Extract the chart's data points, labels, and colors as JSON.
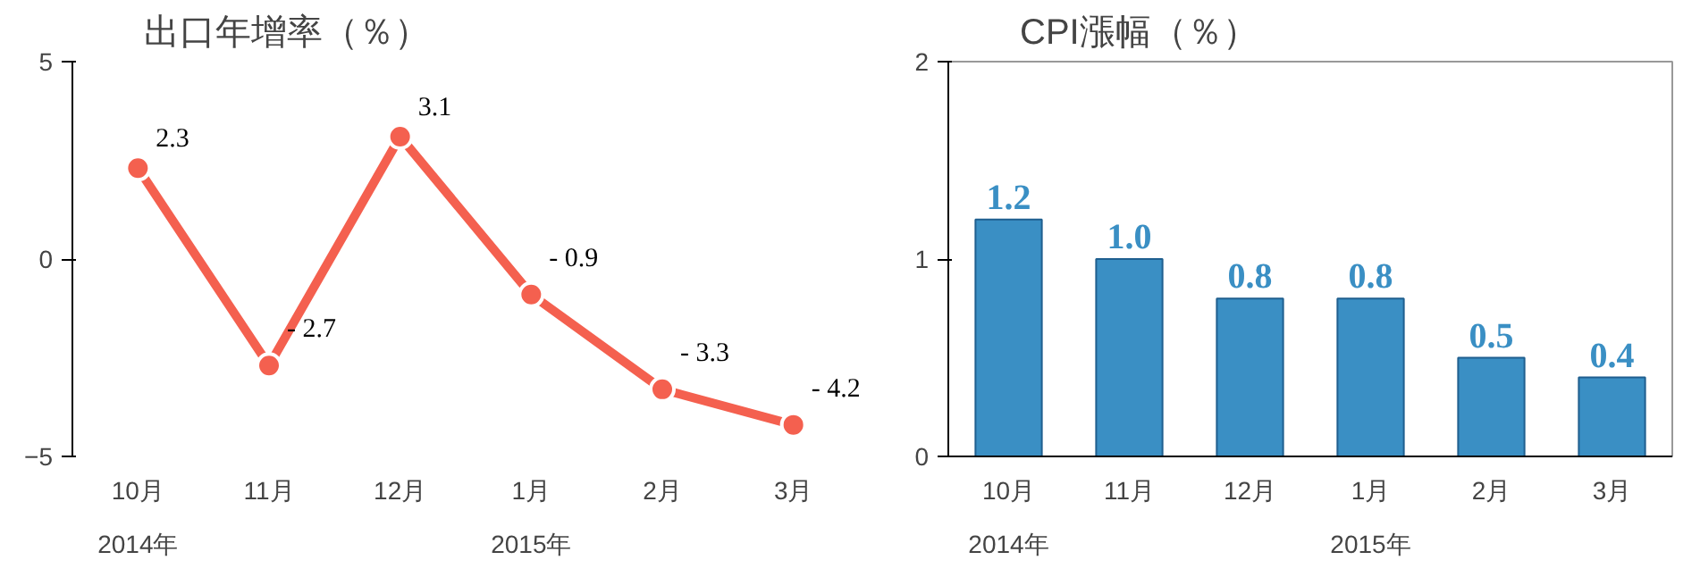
{
  "chart_data": [
    {
      "type": "line",
      "title": "出口年增率（％）",
      "categories": [
        "10月",
        "11月",
        "12月",
        "1月",
        "2月",
        "3月"
      ],
      "series": [
        {
          "color": "#f4604f",
          "values": [
            2.3,
            -2.7,
            3.1,
            -0.9,
            -3.3,
            -4.2
          ],
          "value_labels": [
            "2.3",
            "- 2.7",
            "3.1",
            "- 0.9",
            "- 3.3",
            "- 4.2"
          ]
        }
      ],
      "ylim": [
        -5,
        5
      ],
      "yticks": [
        -5,
        0,
        5
      ],
      "marker": "circle",
      "line_style": "solid",
      "grid": false,
      "annotations": [
        "2014年",
        "2015年"
      ]
    },
    {
      "type": "bar",
      "title": "CPI漲幅（％）",
      "categories": [
        "10月",
        "11月",
        "12月",
        "1月",
        "2月",
        "3月"
      ],
      "series": [
        {
          "color": "#3a8fc4",
          "values": [
            1.2,
            1.0,
            0.8,
            0.8,
            0.5,
            0.4
          ],
          "value_labels": [
            "1.2",
            "1.0",
            "0.8",
            "0.8",
            "0.5",
            "0.4"
          ]
        }
      ],
      "ylim": [
        0,
        2
      ],
      "yticks": [
        0,
        1,
        2
      ],
      "grid": false,
      "annotations": [
        "2014年",
        "2015年"
      ]
    }
  ]
}
